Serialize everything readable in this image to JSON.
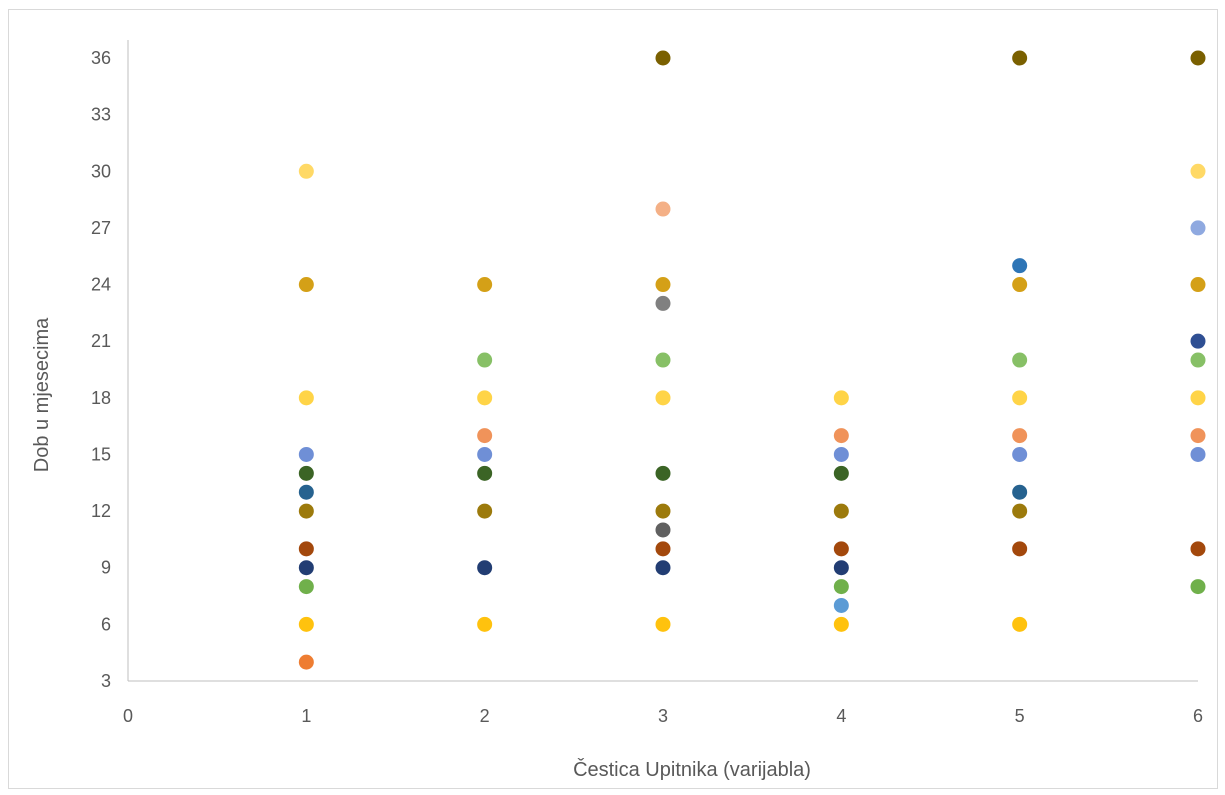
{
  "chart_data": {
    "type": "scatter",
    "title": "",
    "xlabel": "Čestica Upitnika (varijabla)",
    "ylabel": "Dob u mjesecima",
    "xlim": [
      0,
      6
    ],
    "ylim": [
      3,
      36
    ],
    "x_ticks": [
      0,
      1,
      2,
      3,
      4,
      5,
      6
    ],
    "y_ticks": [
      3,
      6,
      9,
      12,
      15,
      18,
      21,
      24,
      27,
      30,
      33,
      36
    ],
    "grid": false,
    "legend": "none",
    "points": [
      {
        "x": 1,
        "y": 30,
        "color": "#ffd966"
      },
      {
        "x": 1,
        "y": 24,
        "color": "#d4a017"
      },
      {
        "x": 1,
        "y": 18,
        "color": "#ffd447"
      },
      {
        "x": 1,
        "y": 15,
        "color": "#6f8fd6"
      },
      {
        "x": 1,
        "y": 14,
        "color": "#3b6425"
      },
      {
        "x": 1,
        "y": 13,
        "color": "#26628f"
      },
      {
        "x": 1,
        "y": 12,
        "color": "#9c7a0c"
      },
      {
        "x": 1,
        "y": 10,
        "color": "#a3480c"
      },
      {
        "x": 1,
        "y": 9,
        "color": "#223d73"
      },
      {
        "x": 1,
        "y": 8,
        "color": "#70b04b"
      },
      {
        "x": 1,
        "y": 6,
        "color": "#ffc20e"
      },
      {
        "x": 1,
        "y": 4,
        "color": "#ee7d32"
      },
      {
        "x": 2,
        "y": 24,
        "color": "#d4a017"
      },
      {
        "x": 2,
        "y": 20,
        "color": "#87c066"
      },
      {
        "x": 2,
        "y": 18,
        "color": "#ffd447"
      },
      {
        "x": 2,
        "y": 16,
        "color": "#f0935a"
      },
      {
        "x": 2,
        "y": 15,
        "color": "#6f8fd6"
      },
      {
        "x": 2,
        "y": 14,
        "color": "#3b6425"
      },
      {
        "x": 2,
        "y": 12,
        "color": "#9c7a0c"
      },
      {
        "x": 2,
        "y": 9,
        "color": "#223d73"
      },
      {
        "x": 2,
        "y": 6,
        "color": "#ffc20e"
      },
      {
        "x": 3,
        "y": 36,
        "color": "#7a6000"
      },
      {
        "x": 3,
        "y": 28,
        "color": "#f4b086"
      },
      {
        "x": 3,
        "y": 24,
        "color": "#d4a017"
      },
      {
        "x": 3,
        "y": 23,
        "color": "#808080"
      },
      {
        "x": 3,
        "y": 20,
        "color": "#87c066"
      },
      {
        "x": 3,
        "y": 18,
        "color": "#ffd447"
      },
      {
        "x": 3,
        "y": 14,
        "color": "#3b6425"
      },
      {
        "x": 3,
        "y": 12,
        "color": "#9c7a0c"
      },
      {
        "x": 3,
        "y": 11,
        "color": "#606060"
      },
      {
        "x": 3,
        "y": 10,
        "color": "#a3480c"
      },
      {
        "x": 3,
        "y": 9,
        "color": "#223d73"
      },
      {
        "x": 3,
        "y": 6,
        "color": "#ffc20e"
      },
      {
        "x": 4,
        "y": 18,
        "color": "#ffd447"
      },
      {
        "x": 4,
        "y": 16,
        "color": "#f0935a"
      },
      {
        "x": 4,
        "y": 15,
        "color": "#6f8fd6"
      },
      {
        "x": 4,
        "y": 14,
        "color": "#3b6425"
      },
      {
        "x": 4,
        "y": 12,
        "color": "#9c7a0c"
      },
      {
        "x": 4,
        "y": 10,
        "color": "#a3480c"
      },
      {
        "x": 4,
        "y": 9,
        "color": "#223d73"
      },
      {
        "x": 4,
        "y": 8,
        "color": "#70b04b"
      },
      {
        "x": 4,
        "y": 7,
        "color": "#5b9bd5"
      },
      {
        "x": 4,
        "y": 6,
        "color": "#ffc20e"
      },
      {
        "x": 5,
        "y": 36,
        "color": "#7a6000"
      },
      {
        "x": 5,
        "y": 25,
        "color": "#2e75b6"
      },
      {
        "x": 5,
        "y": 24,
        "color": "#d4a017"
      },
      {
        "x": 5,
        "y": 20,
        "color": "#87c066"
      },
      {
        "x": 5,
        "y": 18,
        "color": "#ffd447"
      },
      {
        "x": 5,
        "y": 16,
        "color": "#f0935a"
      },
      {
        "x": 5,
        "y": 15,
        "color": "#6f8fd6"
      },
      {
        "x": 5,
        "y": 13,
        "color": "#26628f"
      },
      {
        "x": 5,
        "y": 12,
        "color": "#9c7a0c"
      },
      {
        "x": 5,
        "y": 10,
        "color": "#a3480c"
      },
      {
        "x": 5,
        "y": 6,
        "color": "#ffc20e"
      },
      {
        "x": 6,
        "y": 36,
        "color": "#7a6000"
      },
      {
        "x": 6,
        "y": 30,
        "color": "#ffd966"
      },
      {
        "x": 6,
        "y": 27,
        "color": "#8fa9e0"
      },
      {
        "x": 6,
        "y": 24,
        "color": "#d4a017"
      },
      {
        "x": 6,
        "y": 21,
        "color": "#2f4f93"
      },
      {
        "x": 6,
        "y": 20,
        "color": "#87c066"
      },
      {
        "x": 6,
        "y": 18,
        "color": "#ffd447"
      },
      {
        "x": 6,
        "y": 16,
        "color": "#f0935a"
      },
      {
        "x": 6,
        "y": 15,
        "color": "#6f8fd6"
      },
      {
        "x": 6,
        "y": 10,
        "color": "#a3480c"
      },
      {
        "x": 6,
        "y": 8,
        "color": "#70b04b"
      }
    ]
  }
}
